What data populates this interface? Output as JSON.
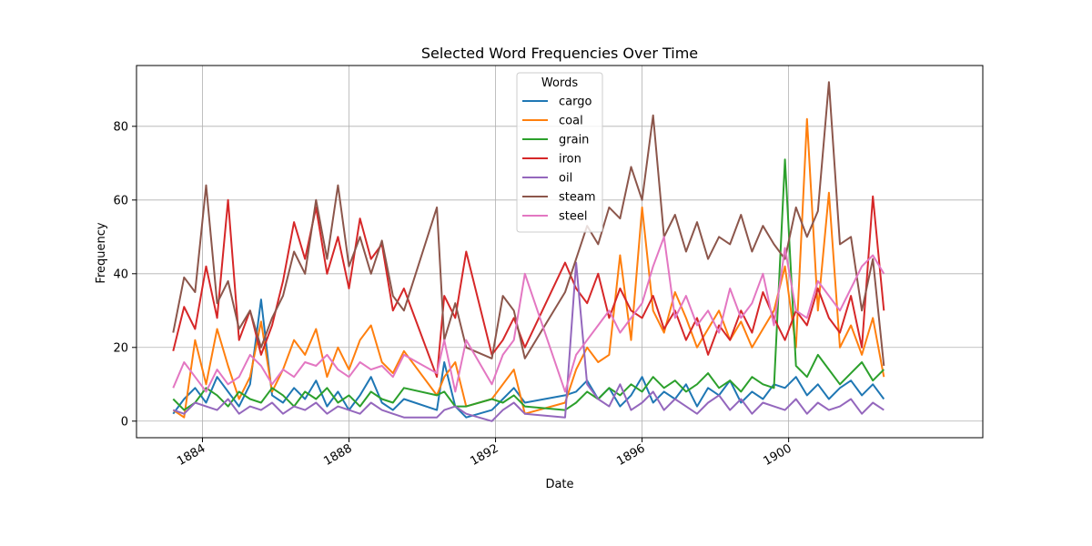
{
  "chart_data": {
    "type": "line",
    "title": "Selected Word Frequencies Over Time",
    "xlabel": "Date",
    "ylabel": "Frequency",
    "xlim": [
      1882.2,
      1905.3
    ],
    "ylim": [
      -4.5,
      96.5
    ],
    "x_ticks": [
      1884,
      1888,
      1892,
      1896,
      1900
    ],
    "y_ticks": [
      0,
      20,
      40,
      60,
      80
    ],
    "grid": true,
    "legend": {
      "title": "Words",
      "placement": "upper-center"
    },
    "x": [
      1883.2,
      1883.5,
      1883.8,
      1884.1,
      1884.4,
      1884.7,
      1885.0,
      1885.3,
      1885.6,
      1885.9,
      1886.2,
      1886.5,
      1886.8,
      1887.1,
      1887.4,
      1887.7,
      1888.0,
      1888.3,
      1888.6,
      1888.9,
      1889.2,
      1889.5,
      1890.4,
      1890.6,
      1890.9,
      1891.2,
      1891.9,
      1892.2,
      1892.5,
      1892.8,
      1893.9,
      1894.2,
      1894.5,
      1894.8,
      1895.1,
      1895.4,
      1895.7,
      1896.0,
      1896.3,
      1896.6,
      1896.9,
      1897.2,
      1897.5,
      1897.8,
      1898.1,
      1898.4,
      1898.7,
      1899.0,
      1899.3,
      1899.6,
      1899.9,
      1900.2,
      1900.5,
      1900.8,
      1901.1,
      1901.4,
      1901.7,
      1902.0,
      1902.3,
      1902.6
    ],
    "series": [
      {
        "name": "cargo",
        "color": "#1f77b4",
        "values": [
          2,
          6,
          9,
          5,
          12,
          8,
          4,
          10,
          33,
          7,
          5,
          9,
          6,
          11,
          4,
          8,
          3,
          7,
          12,
          5,
          3,
          6,
          3,
          16,
          4,
          1,
          3,
          6,
          9,
          5,
          7,
          8,
          11,
          6,
          9,
          4,
          7,
          12,
          5,
          8,
          6,
          10,
          4,
          9,
          7,
          11,
          5,
          8,
          6,
          10,
          9,
          12,
          7,
          10,
          6,
          9,
          11,
          7,
          10,
          6
        ]
      },
      {
        "name": "coal",
        "color": "#ff7f0e",
        "values": [
          3,
          1,
          22,
          10,
          25,
          15,
          6,
          12,
          27,
          8,
          14,
          22,
          18,
          25,
          12,
          20,
          14,
          22,
          26,
          16,
          13,
          19,
          7,
          12,
          16,
          4,
          6,
          10,
          14,
          2,
          5,
          14,
          20,
          16,
          18,
          45,
          22,
          58,
          30,
          24,
          35,
          28,
          20,
          25,
          30,
          22,
          27,
          20,
          25,
          30,
          42,
          20,
          82,
          30,
          62,
          20,
          26,
          18,
          28,
          12
        ]
      },
      {
        "name": "grain",
        "color": "#2ca02c",
        "values": [
          6,
          3,
          5,
          9,
          7,
          4,
          8,
          6,
          5,
          9,
          7,
          4,
          8,
          6,
          9,
          5,
          7,
          4,
          8,
          6,
          5,
          9,
          7,
          8,
          4,
          4,
          6,
          5,
          7,
          4,
          3,
          5,
          8,
          6,
          9,
          7,
          10,
          8,
          12,
          9,
          11,
          8,
          10,
          13,
          9,
          11,
          8,
          12,
          10,
          9,
          71,
          15,
          12,
          18,
          14,
          10,
          13,
          16,
          11,
          14
        ]
      },
      {
        "name": "iron",
        "color": "#d62728",
        "values": [
          19,
          31,
          25,
          42,
          28,
          60,
          22,
          30,
          18,
          26,
          38,
          54,
          44,
          58,
          40,
          50,
          36,
          55,
          44,
          48,
          30,
          36,
          12,
          34,
          28,
          46,
          18,
          22,
          28,
          20,
          43,
          36,
          32,
          40,
          28,
          36,
          30,
          28,
          34,
          25,
          30,
          22,
          28,
          18,
          26,
          22,
          30,
          24,
          35,
          28,
          22,
          30,
          26,
          36,
          28,
          24,
          34,
          20,
          61,
          30
        ]
      },
      {
        "name": "oil",
        "color": "#9467bd",
        "values": [
          3,
          2,
          5,
          4,
          3,
          6,
          2,
          4,
          3,
          5,
          2,
          4,
          3,
          5,
          2,
          4,
          3,
          2,
          5,
          3,
          2,
          1,
          1,
          3,
          4,
          2,
          0,
          3,
          5,
          2,
          1,
          43,
          10,
          6,
          4,
          10,
          3,
          5,
          8,
          3,
          6,
          4,
          2,
          5,
          7,
          3,
          6,
          2,
          5,
          4,
          3,
          6,
          2,
          5,
          3,
          4,
          6,
          2,
          5,
          3
        ]
      },
      {
        "name": "steam",
        "color": "#8c564b",
        "values": [
          24,
          39,
          35,
          64,
          32,
          38,
          25,
          30,
          20,
          28,
          34,
          46,
          40,
          60,
          44,
          64,
          42,
          50,
          40,
          49,
          34,
          30,
          58,
          22,
          32,
          20,
          17,
          34,
          30,
          17,
          35,
          44,
          53,
          48,
          58,
          55,
          69,
          60,
          83,
          50,
          56,
          46,
          54,
          44,
          50,
          48,
          56,
          46,
          53,
          48,
          44,
          58,
          50,
          57,
          92,
          48,
          50,
          30,
          44,
          15
        ]
      },
      {
        "name": "steel",
        "color": "#e377c2",
        "values": [
          9,
          16,
          12,
          8,
          14,
          10,
          12,
          18,
          15,
          10,
          14,
          12,
          16,
          15,
          18,
          14,
          12,
          16,
          14,
          15,
          12,
          18,
          13,
          22,
          8,
          22,
          10,
          18,
          22,
          40,
          8,
          18,
          22,
          26,
          30,
          24,
          28,
          32,
          42,
          50,
          28,
          34,
          26,
          30,
          24,
          36,
          28,
          32,
          40,
          26,
          47,
          30,
          28,
          38,
          34,
          30,
          36,
          42,
          45,
          40
        ]
      }
    ]
  }
}
